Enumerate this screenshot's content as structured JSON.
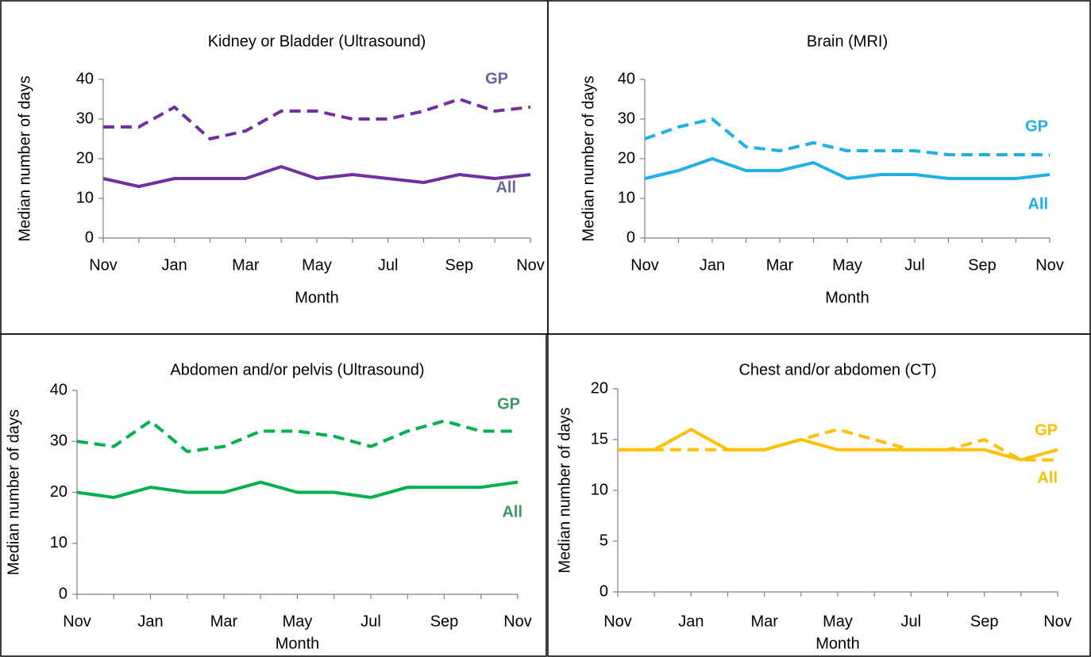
{
  "chart_data": [
    {
      "type": "line",
      "title": "Kidney or Bladder (Ultrasound)",
      "x_label": "Month",
      "y_label": "Median number of days",
      "categories": [
        "Nov",
        null,
        "Jan",
        null,
        "Mar",
        null,
        "May",
        null,
        "Jul",
        null,
        "Sep",
        null,
        "Nov"
      ],
      "ylim": [
        0,
        40
      ],
      "yticks": [
        0,
        10,
        20,
        30,
        40
      ],
      "label_color": "#7060a0",
      "series": [
        {
          "name": "GP",
          "color": "#7030a0",
          "dashed": true,
          "values": [
            28,
            28,
            33,
            25,
            27,
            32,
            32,
            30,
            30,
            32,
            35,
            32,
            33
          ]
        },
        {
          "name": "All",
          "color": "#7030a0",
          "dashed": false,
          "values": [
            15,
            13,
            15,
            15,
            15,
            18,
            15,
            16,
            15,
            14,
            16,
            15,
            16
          ]
        }
      ]
    },
    {
      "type": "line",
      "title": "Brain (MRI)",
      "x_label": "Month",
      "y_label": "Median number of days",
      "categories": [
        "Nov",
        null,
        "Jan",
        null,
        "Mar",
        null,
        "May",
        null,
        "Jul",
        null,
        "Sep",
        null,
        "Nov"
      ],
      "ylim": [
        0,
        40
      ],
      "yticks": [
        0,
        10,
        20,
        30,
        40
      ],
      "label_color": "#1fb0ea",
      "series": [
        {
          "name": "GP",
          "color": "#1fb0ea",
          "dashed": true,
          "values": [
            25,
            28,
            30,
            23,
            22,
            24,
            22,
            22,
            22,
            21,
            21,
            21,
            21
          ]
        },
        {
          "name": "All",
          "color": "#1fb0ea",
          "dashed": false,
          "values": [
            15,
            17,
            20,
            17,
            17,
            19,
            15,
            16,
            16,
            15,
            15,
            15,
            16
          ]
        }
      ]
    },
    {
      "type": "line",
      "title": "Abdomen and/or pelvis (Ultrasound)",
      "x_label": "Month",
      "y_label": "Median number of days",
      "categories": [
        "Nov",
        null,
        "Jan",
        null,
        "Mar",
        null,
        "May",
        null,
        "Jul",
        null,
        "Sep",
        null,
        "Nov"
      ],
      "ylim": [
        0,
        40
      ],
      "yticks": [
        0,
        10,
        20,
        30,
        40
      ],
      "label_color": "#3a9a60",
      "series": [
        {
          "name": "GP",
          "color": "#00b050",
          "dashed": true,
          "values": [
            30,
            29,
            34,
            28,
            29,
            32,
            32,
            31,
            29,
            32,
            34,
            32,
            32
          ]
        },
        {
          "name": "All",
          "color": "#00b050",
          "dashed": false,
          "values": [
            20,
            19,
            21,
            20,
            20,
            22,
            20,
            20,
            19,
            21,
            21,
            21,
            22
          ]
        }
      ]
    },
    {
      "type": "line",
      "title": "Chest and/or abdomen (CT)",
      "x_label": "Month",
      "y_label": "Median number of days",
      "categories": [
        "Nov",
        null,
        "Jan",
        null,
        "Mar",
        null,
        "May",
        null,
        "Jul",
        null,
        "Sep",
        null,
        "Nov"
      ],
      "ylim": [
        0,
        20
      ],
      "yticks": [
        0,
        5,
        10,
        15,
        20
      ],
      "label_color": "#ffc000",
      "series": [
        {
          "name": "GP",
          "color": "#ffc000",
          "dashed": true,
          "values": [
            14,
            14,
            14,
            14,
            14,
            15,
            16,
            15,
            14,
            14,
            15,
            13,
            13
          ]
        },
        {
          "name": "All",
          "color": "#ffc000",
          "dashed": false,
          "values": [
            14,
            14,
            16,
            14,
            14,
            15,
            14,
            14,
            14,
            14,
            14,
            13,
            14
          ]
        }
      ]
    }
  ]
}
